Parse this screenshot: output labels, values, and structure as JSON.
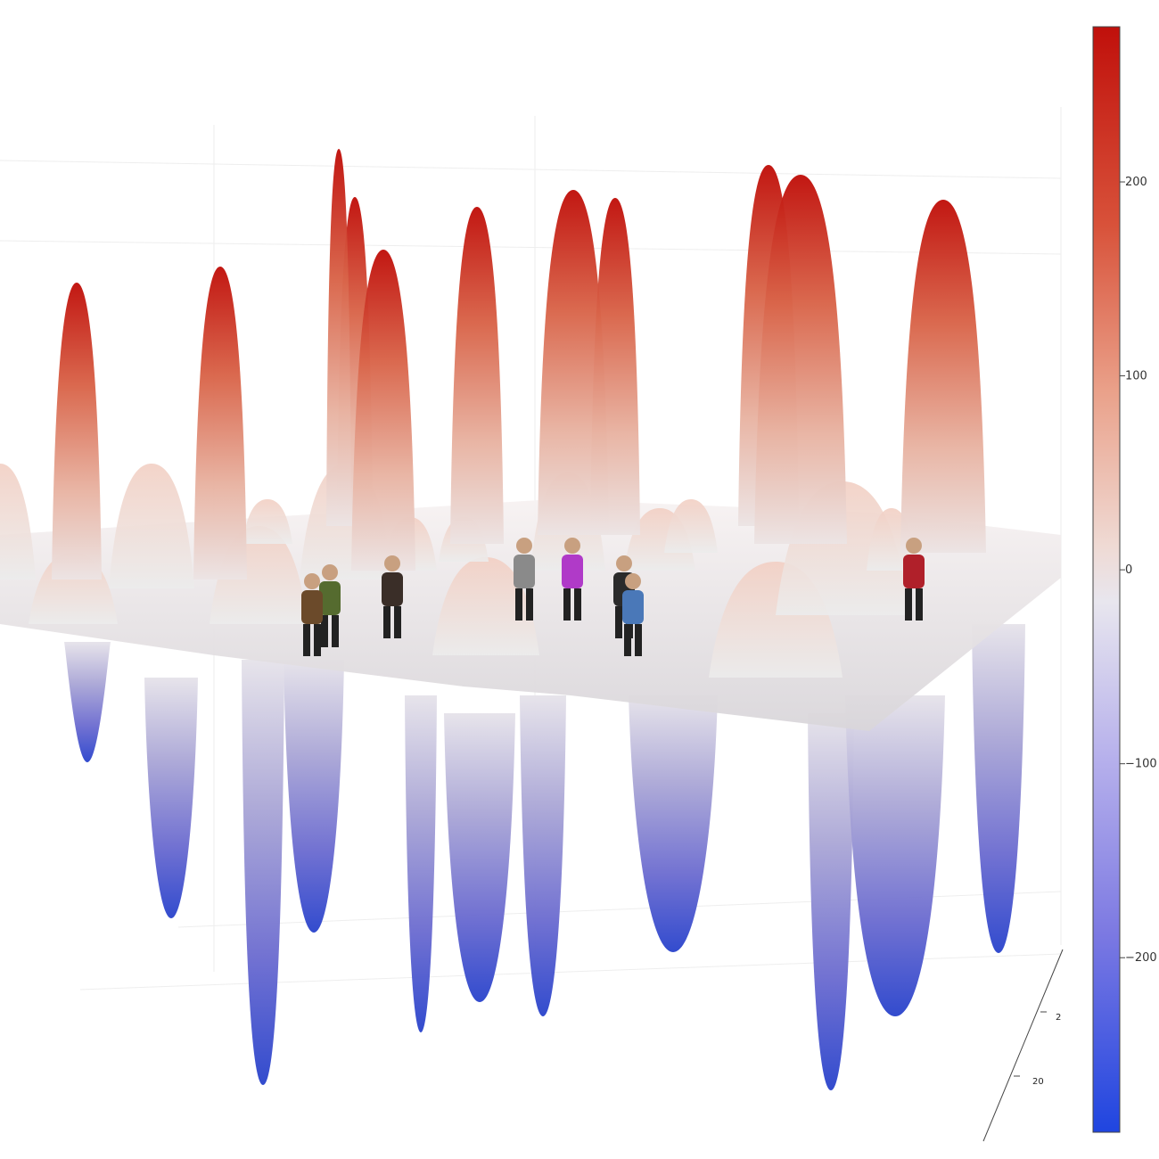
{
  "chart_data": {
    "type": "surface",
    "title": "",
    "colorscale": {
      "name": "diverging blue-white-red",
      "colors": [
        "#1f45e0",
        "#7f7ce6",
        "#bdb7ee",
        "#e6e3ec",
        "#f2c1b0",
        "#e07a5a",
        "#c0100b"
      ],
      "range": [
        -290,
        280
      ],
      "ticks": [
        200,
        100,
        0,
        -100,
        -200
      ],
      "tick_labels": [
        "200",
        "100",
        "0",
        "−100",
        "−200"
      ]
    },
    "peaks": [
      {
        "value": 185
      },
      {
        "value": 195
      },
      {
        "value": 205
      },
      {
        "value": 200
      },
      {
        "value": 210
      },
      {
        "value": 215
      },
      {
        "value": 210
      },
      {
        "value": 225
      },
      {
        "value": 230
      },
      {
        "value": 220
      },
      {
        "value": 235
      }
    ],
    "troughs": [
      {
        "value": -75
      },
      {
        "value": -150
      },
      {
        "value": -170
      },
      {
        "value": -210
      },
      {
        "value": -180
      },
      {
        "value": -200
      },
      {
        "value": -160
      },
      {
        "value": -235
      },
      {
        "value": -200
      },
      {
        "value": -205
      },
      {
        "value": -265
      }
    ],
    "axis": {
      "tick_labels": [
        "2",
        "20"
      ]
    }
  },
  "overlay": {
    "people_count": 8
  }
}
